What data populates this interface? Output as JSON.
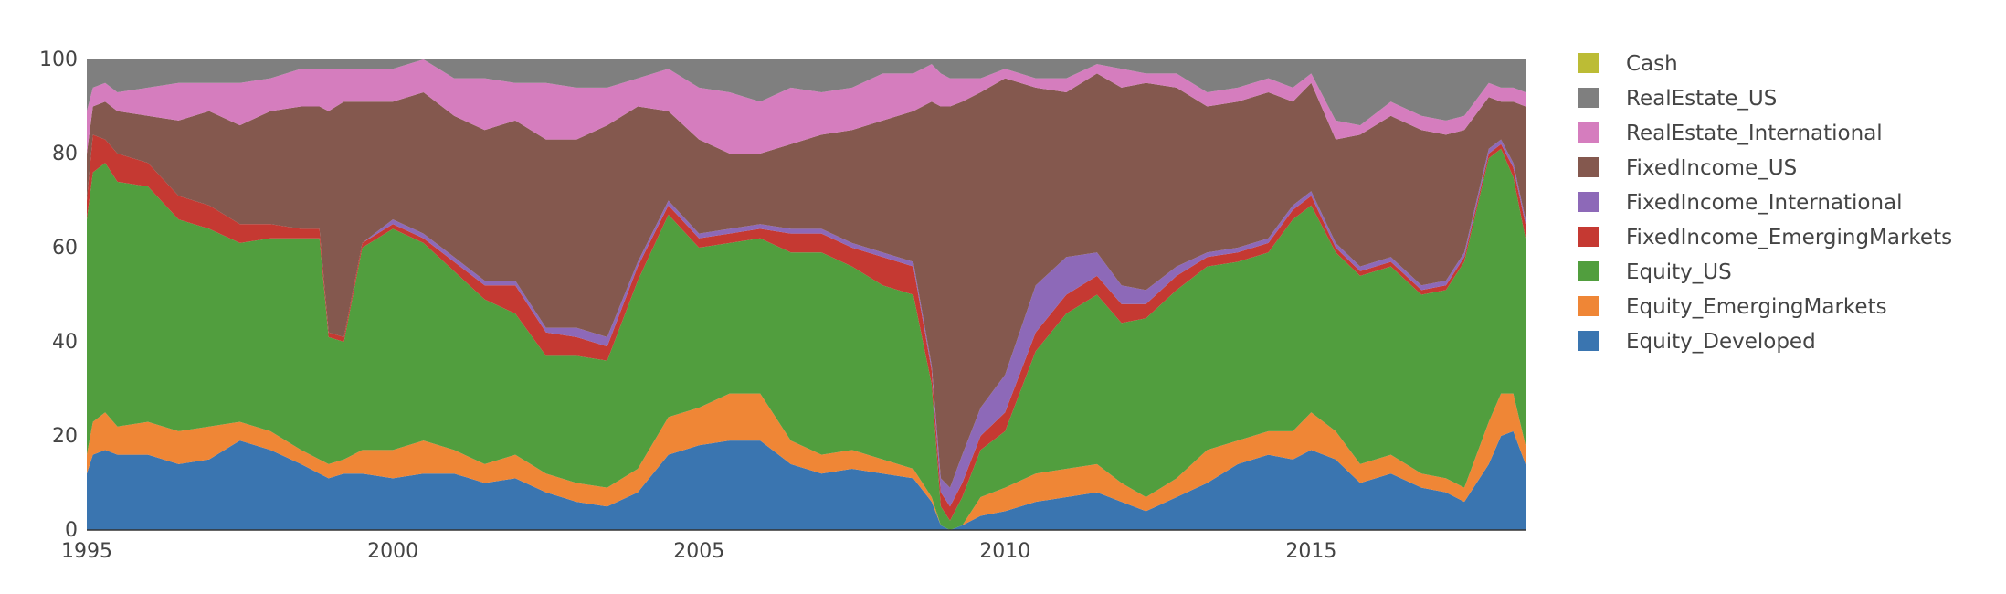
{
  "chart_data": {
    "type": "area",
    "stacked": true,
    "x_ticks": [
      "1995",
      "2000",
      "2005",
      "2010",
      "2015"
    ],
    "y_ticks": [
      "0",
      "20",
      "40",
      "60",
      "80",
      "100"
    ],
    "xlim": [
      1995.0,
      2018.5
    ],
    "ylim": [
      0,
      100
    ],
    "legend_position": "right",
    "x": [
      1995.0,
      1995.1,
      1995.3,
      1995.5,
      1996.0,
      1996.5,
      1997.0,
      1997.5,
      1998.0,
      1998.5,
      1998.8,
      1998.95,
      1999.2,
      1999.5,
      2000.0,
      2000.5,
      2001.0,
      2001.5,
      2002.0,
      2002.5,
      2003.0,
      2003.5,
      2004.0,
      2004.5,
      2005.0,
      2005.5,
      2006.0,
      2006.5,
      2007.0,
      2007.5,
      2008.0,
      2008.5,
      2008.8,
      2008.95,
      2009.1,
      2009.3,
      2009.6,
      2010.0,
      2010.5,
      2011.0,
      2011.5,
      2011.9,
      2012.3,
      2012.8,
      2013.3,
      2013.8,
      2014.3,
      2014.7,
      2015.0,
      2015.4,
      2015.8,
      2016.3,
      2016.8,
      2017.2,
      2017.5,
      2017.9,
      2018.1,
      2018.3,
      2018.5
    ],
    "series": [
      {
        "name": "Equity_Developed",
        "color": "#3a75b0",
        "values": [
          12,
          16,
          17,
          16,
          16,
          14,
          15,
          19,
          17,
          14,
          12,
          11,
          12,
          12,
          11,
          12,
          12,
          10,
          11,
          8,
          6,
          5,
          8,
          16,
          18,
          19,
          19,
          14,
          12,
          13,
          12,
          11,
          6,
          1,
          0,
          1,
          3,
          4,
          6,
          7,
          8,
          6,
          4,
          7,
          10,
          14,
          16,
          15,
          17,
          15,
          10,
          12,
          9,
          8,
          6,
          14,
          20,
          21,
          14
        ]
      },
      {
        "name": "Equity_EmergingMarkets",
        "color": "#ef8636",
        "values": [
          4,
          7,
          8,
          6,
          7,
          7,
          7,
          4,
          4,
          3,
          3,
          3,
          3,
          5,
          6,
          7,
          5,
          4,
          5,
          4,
          4,
          4,
          5,
          8,
          8,
          10,
          10,
          5,
          4,
          4,
          3,
          2,
          1,
          0,
          0,
          0,
          4,
          5,
          6,
          6,
          6,
          4,
          3,
          4,
          7,
          5,
          5,
          6,
          8,
          6,
          4,
          4,
          3,
          3,
          3,
          9,
          9,
          8,
          4
        ]
      },
      {
        "name": "Equity_US",
        "color": "#519e3e",
        "values": [
          50,
          53,
          53,
          52,
          50,
          45,
          42,
          38,
          41,
          45,
          47,
          27,
          25,
          43,
          47,
          42,
          38,
          35,
          30,
          25,
          27,
          27,
          40,
          43,
          34,
          32,
          33,
          40,
          43,
          39,
          37,
          37,
          24,
          4,
          2,
          6,
          10,
          12,
          26,
          33,
          36,
          34,
          38,
          40,
          39,
          38,
          38,
          45,
          44,
          38,
          40,
          40,
          38,
          40,
          48,
          56,
          52,
          46,
          44
        ]
      },
      {
        "name": "FixedIncome_EmergingMarkets",
        "color": "#c53932",
        "values": [
          4,
          8,
          5,
          6,
          5,
          5,
          5,
          4,
          3,
          2,
          2,
          1,
          1,
          1,
          1,
          1,
          2,
          3,
          6,
          5,
          4,
          3,
          3,
          2,
          2,
          2,
          2,
          4,
          4,
          4,
          6,
          6,
          3,
          3,
          3,
          3,
          3,
          4,
          4,
          4,
          4,
          4,
          3,
          3,
          2,
          2,
          2,
          2,
          2,
          1,
          1,
          1,
          1,
          1,
          1,
          1,
          1,
          2,
          3
        ]
      },
      {
        "name": "FixedIncome_International",
        "color": "#8d69b8",
        "values": [
          0,
          0,
          0,
          0,
          0,
          0,
          0,
          0,
          0,
          0,
          0,
          0,
          0,
          0,
          1,
          1,
          1,
          1,
          1,
          1,
          2,
          2,
          1,
          1,
          1,
          1,
          1,
          1,
          1,
          1,
          1,
          1,
          1,
          3,
          4,
          6,
          6,
          8,
          10,
          8,
          5,
          4,
          3,
          2,
          1,
          1,
          1,
          1,
          1,
          1,
          1,
          1,
          1,
          1,
          1,
          1,
          1,
          1,
          1
        ]
      },
      {
        "name": "FixedIncome_US",
        "color": "#84584e",
        "values": [
          10,
          6,
          8,
          9,
          10,
          16,
          20,
          21,
          24,
          26,
          26,
          47,
          50,
          30,
          25,
          30,
          30,
          32,
          34,
          40,
          40,
          45,
          33,
          19,
          20,
          16,
          15,
          18,
          20,
          24,
          28,
          32,
          56,
          79,
          81,
          75,
          67,
          63,
          42,
          35,
          38,
          42,
          44,
          38,
          31,
          31,
          31,
          22,
          23,
          22,
          28,
          30,
          33,
          31,
          26,
          11,
          8,
          13,
          24
        ]
      },
      {
        "name": "RealEstate_International",
        "color": "#d57dbe",
        "values": [
          9,
          4,
          4,
          4,
          6,
          8,
          6,
          9,
          7,
          8,
          8,
          9,
          7,
          7,
          7,
          7,
          8,
          11,
          8,
          12,
          11,
          8,
          6,
          9,
          11,
          13,
          11,
          12,
          9,
          9,
          10,
          8,
          8,
          7,
          6,
          5,
          3,
          2,
          2,
          3,
          2,
          4,
          2,
          3,
          3,
          3,
          3,
          3,
          2,
          4,
          2,
          3,
          3,
          3,
          3,
          3,
          3,
          3,
          3
        ]
      },
      {
        "name": "RealEstate_US",
        "color": "#7f7f7f",
        "values": [
          11,
          6,
          5,
          7,
          6,
          5,
          5,
          5,
          4,
          2,
          2,
          2,
          2,
          2,
          2,
          0,
          4,
          4,
          5,
          5,
          6,
          6,
          4,
          4,
          6,
          7,
          9,
          6,
          7,
          6,
          3,
          3,
          1,
          3,
          4,
          4,
          4,
          6,
          4,
          4,
          4,
          2,
          3,
          3,
          7,
          6,
          4,
          6,
          3,
          13,
          14,
          9,
          12,
          13,
          12,
          5,
          6,
          6,
          7
        ]
      },
      {
        "name": "Cash",
        "color": "#bcbc35",
        "values": [
          0.5,
          0.5,
          0.5,
          0.5,
          0.5,
          0.5,
          0.5,
          0.5,
          0.5,
          0.5,
          0.5,
          0.5,
          0.5,
          0.5,
          0.5,
          0.5,
          0.5,
          0.5,
          0.5,
          0.5,
          0.5,
          0.5,
          0.5,
          0.5,
          0.5,
          0.5,
          0.5,
          0.5,
          0.5,
          0.5,
          0.5,
          0.5,
          0.5,
          0.5,
          0.5,
          0.5,
          0.5,
          0.5,
          0.5,
          0.5,
          0.5,
          0.5,
          0.5,
          0.5,
          0.5,
          0.5,
          0.5,
          0.5,
          0.5,
          0.5,
          0.5,
          0.5,
          0.5,
          0.5,
          0.5,
          0.5,
          0.5,
          0.5,
          0.5
        ]
      }
    ],
    "legend_order": [
      "Cash",
      "RealEstate_US",
      "RealEstate_International",
      "FixedIncome_US",
      "FixedIncome_International",
      "FixedIncome_EmergingMarkets",
      "Equity_US",
      "Equity_EmergingMarkets",
      "Equity_Developed"
    ]
  }
}
